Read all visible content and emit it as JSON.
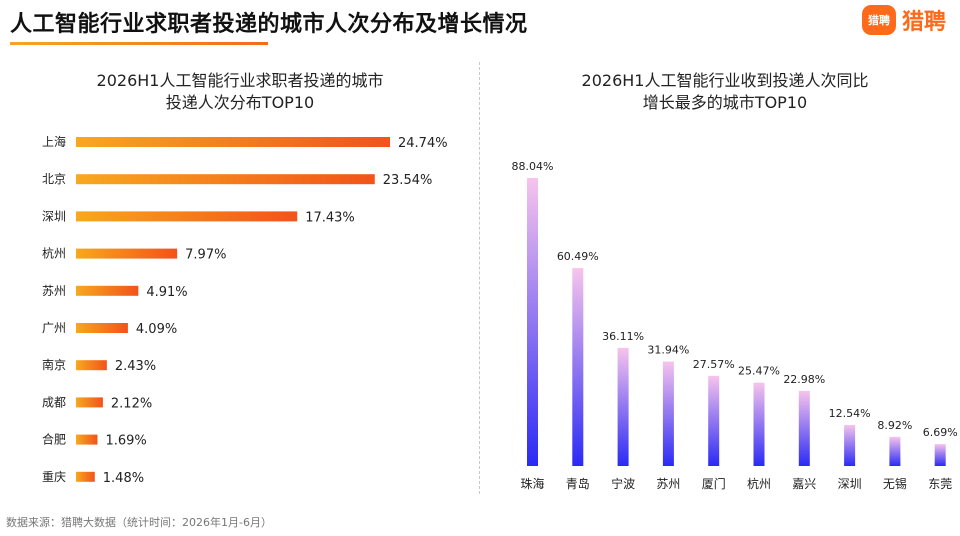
{
  "header": {
    "title": "人工智能行业求职者投递的城市人次分布及增长情况",
    "logo_icon_text": "猎聘",
    "logo_text": "猎聘",
    "accent_color": "#ff6a1a"
  },
  "chart_data": [
    {
      "type": "bar",
      "orientation": "horizontal",
      "title_line1": "2026H1人工智能行业求职者投递的城市",
      "title_line2": "投递人次分布TOP10",
      "categories": [
        "上海",
        "北京",
        "深圳",
        "杭州",
        "苏州",
        "广州",
        "南京",
        "成都",
        "合肥",
        "重庆"
      ],
      "values": [
        24.74,
        23.54,
        17.43,
        7.97,
        4.91,
        4.09,
        2.43,
        2.12,
        1.69,
        1.48
      ],
      "labels": [
        "24.74%",
        "23.54%",
        "17.43%",
        "7.97%",
        "4.91%",
        "4.09%",
        "2.43%",
        "2.12%",
        "1.69%",
        "1.48%"
      ],
      "unit": "%",
      "xlim": [
        0,
        24.74
      ],
      "grid": false,
      "bar_gradient": [
        "#f7a81e",
        "#f2531a"
      ]
    },
    {
      "type": "bar",
      "orientation": "vertical",
      "title_line1": "2026H1人工智能行业收到投递人次同比",
      "title_line2": "增长最多的城市TOP10",
      "categories": [
        "珠海",
        "青岛",
        "宁波",
        "苏州",
        "厦门",
        "杭州",
        "嘉兴",
        "深圳",
        "无锡",
        "东莞"
      ],
      "values": [
        88.04,
        60.49,
        36.11,
        31.94,
        27.57,
        25.47,
        22.98,
        12.54,
        8.92,
        6.69
      ],
      "labels": [
        "88.04%",
        "60.49%",
        "36.11%",
        "31.94%",
        "27.57%",
        "25.47%",
        "22.98%",
        "12.54%",
        "8.92%",
        "6.69%"
      ],
      "unit": "%",
      "ylim": [
        0,
        88.04
      ],
      "grid": false,
      "bar_gradient": [
        "#f7c4ec",
        "#2a2af5"
      ]
    }
  ],
  "footer": {
    "source": "数据来源：猎聘大数据（统计时间：2026年1月-6月）"
  }
}
